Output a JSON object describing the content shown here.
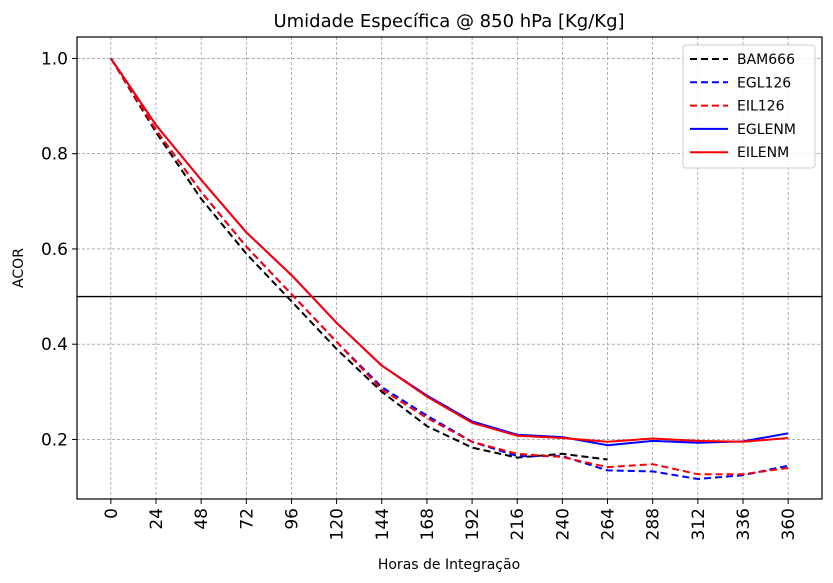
{
  "chart_data": {
    "type": "line",
    "title": "Umidade Específica @ 850 hPa [Kg/Kg]",
    "xlabel": "Horas de Integração",
    "ylabel": "ACOR",
    "x": [
      0,
      24,
      48,
      72,
      96,
      120,
      144,
      168,
      192,
      216,
      240,
      264,
      288,
      312,
      336,
      360
    ],
    "x_tick_labels": [
      "0",
      "24",
      "48",
      "72",
      "96",
      "120",
      "144",
      "168",
      "192",
      "216",
      "240",
      "264",
      "288",
      "312",
      "336",
      "360"
    ],
    "y_ticks": [
      0.2,
      0.4,
      0.6,
      0.8,
      1.0
    ],
    "y_tick_labels": [
      "0.2",
      "0.4",
      "0.6",
      "0.8",
      "1.0"
    ],
    "xlim": [
      -18,
      378
    ],
    "ylim": [
      0.075,
      1.045
    ],
    "reference_line": 0.5,
    "grid": true,
    "legend_position": "top-right",
    "series": [
      {
        "name": "BAM666",
        "color": "#000000",
        "style": "dashed",
        "values": [
          1.0,
          0.845,
          0.705,
          0.59,
          0.49,
          0.39,
          0.3,
          0.228,
          0.183,
          0.162,
          0.17,
          0.158,
          null,
          null,
          null,
          null
        ]
      },
      {
        "name": "EGL126",
        "color": "#0000ff",
        "style": "dashed",
        "values": [
          1.0,
          0.85,
          0.72,
          0.605,
          0.505,
          0.405,
          0.31,
          0.25,
          0.195,
          0.165,
          0.165,
          0.135,
          0.133,
          0.117,
          0.125,
          0.145
        ]
      },
      {
        "name": "EIL126",
        "color": "#ff0000",
        "style": "dashed",
        "values": [
          1.0,
          0.85,
          0.72,
          0.605,
          0.505,
          0.405,
          0.305,
          0.245,
          0.195,
          0.17,
          0.163,
          0.142,
          0.148,
          0.127,
          0.127,
          0.14
        ]
      },
      {
        "name": "EGLENM",
        "color": "#0000ff",
        "style": "solid",
        "values": [
          1.0,
          0.86,
          0.745,
          0.635,
          0.545,
          0.445,
          0.355,
          0.292,
          0.238,
          0.21,
          0.205,
          0.188,
          0.197,
          0.193,
          0.196,
          0.213
        ]
      },
      {
        "name": "EILENM",
        "color": "#ff0000",
        "style": "solid",
        "values": [
          1.0,
          0.86,
          0.745,
          0.635,
          0.545,
          0.445,
          0.355,
          0.29,
          0.235,
          0.208,
          0.203,
          0.195,
          0.202,
          0.197,
          0.195,
          0.203
        ]
      }
    ]
  }
}
